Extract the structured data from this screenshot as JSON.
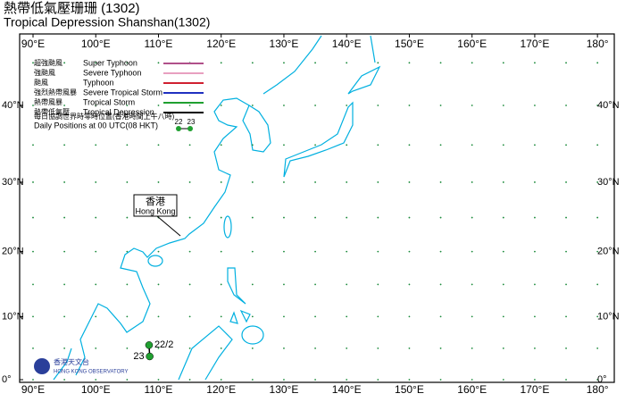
{
  "header": {
    "title_zh": "熱帶低氣壓珊珊 (1302)",
    "title_en": "Tropical Depression Shanshan(1302)"
  },
  "map": {
    "lon_labels": [
      {
        "value": 90,
        "label": "90°E"
      },
      {
        "value": 100,
        "label": "100°E"
      },
      {
        "value": 110,
        "label": "110°E"
      },
      {
        "value": 120,
        "label": "120°E"
      },
      {
        "value": 130,
        "label": "130°E"
      },
      {
        "value": 140,
        "label": "140°E"
      },
      {
        "value": 150,
        "label": "150°E"
      },
      {
        "value": 160,
        "label": "160°E"
      },
      {
        "value": 170,
        "label": "170°E"
      },
      {
        "value": 180,
        "label": "180°"
      }
    ],
    "lat_labels": [
      {
        "value": 40,
        "label": "40°N"
      },
      {
        "value": 30,
        "label": "30°N"
      },
      {
        "value": 20,
        "label": "20°N"
      },
      {
        "value": 10,
        "label": "10°N"
      },
      {
        "value": 0,
        "label": "0°"
      }
    ],
    "hong_kong": {
      "zh": "香港",
      "en": "Hong Kong"
    }
  },
  "legend": {
    "items": [
      {
        "zh": "超強颱風",
        "en": "Super Typhoon",
        "color": "#b0508a"
      },
      {
        "zh": "強颱風",
        "en": "Severe Typhoon",
        "color": "#e8a0c0"
      },
      {
        "zh": "颱風",
        "en": "Typhoon",
        "color": "#d02030"
      },
      {
        "zh": "強烈熱帶風暴",
        "en": "Severe Tropical Storm",
        "color": "#2030c0"
      },
      {
        "zh": "熱帶風暴",
        "en": "Tropical Storm",
        "color": "#20a030"
      },
      {
        "zh": "熱帶低氣壓",
        "en": "Tropical Depression",
        "color": "#000000"
      }
    ],
    "note_zh": "每日協調世界時零時位置(香港時間上午八時)",
    "note_en": "Daily Positions at 00 UTC(08 HKT)",
    "sample": [
      "22",
      "23"
    ]
  },
  "track": [
    {
      "lon": 108.5,
      "lat": 5.5,
      "label": "22/2"
    },
    {
      "lon": 108.6,
      "lat": 3.7,
      "label": "23"
    }
  ],
  "logo": {
    "zh": "香港天文台",
    "en": "HONG KONG OBSERVATORY"
  }
}
